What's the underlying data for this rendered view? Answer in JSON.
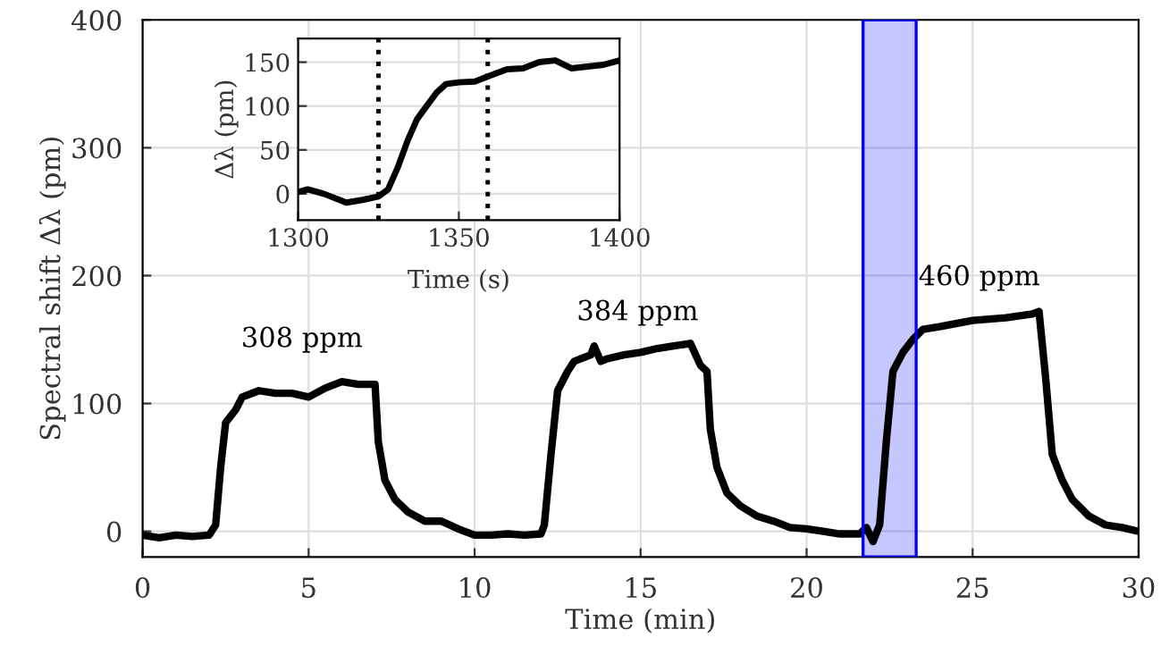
{
  "chart_data": [
    {
      "type": "line",
      "xlabel": "Time (min)",
      "ylabel": "Spectral shift Δλ (pm)",
      "x": [
        0,
        0.5,
        1,
        1.5,
        2,
        2.2,
        2.35,
        2.5,
        2.8,
        3,
        3.5,
        4,
        4.5,
        5,
        5.5,
        6,
        6.5,
        7,
        7.1,
        7.3,
        7.6,
        8,
        8.5,
        9,
        9.5,
        10,
        10.5,
        11,
        11.5,
        12,
        12.1,
        12.3,
        12.5,
        12.8,
        13,
        13.5,
        13.6,
        13.8,
        14,
        14.5,
        15,
        15.5,
        16,
        16.5,
        16.8,
        17,
        17.1,
        17.3,
        17.6,
        18,
        18.5,
        19,
        19.5,
        20,
        20.5,
        21,
        21.6,
        21.8,
        22,
        22.2,
        22.4,
        22.6,
        22.9,
        23.2,
        23.5,
        24,
        25,
        26,
        26.8,
        27,
        27.2,
        27.4,
        27.7,
        28,
        28.5,
        29,
        29.5,
        30
      ],
      "series": [
        {
          "color": "#000000",
          "values": [
            -3,
            -5,
            -3,
            -4,
            -3,
            5,
            50,
            85,
            95,
            105,
            110,
            108,
            108,
            105,
            112,
            117,
            115,
            115,
            70,
            40,
            25,
            15,
            8,
            8,
            2,
            -3,
            -3,
            -2,
            -3,
            -2,
            5,
            60,
            110,
            125,
            133,
            138,
            145,
            133,
            135,
            138,
            140,
            143,
            145,
            147,
            130,
            125,
            80,
            50,
            30,
            20,
            12,
            8,
            3,
            2,
            0,
            -2,
            -2,
            3,
            -8,
            5,
            70,
            125,
            140,
            150,
            158,
            160,
            165,
            167,
            170,
            172,
            120,
            60,
            40,
            25,
            12,
            5,
            3,
            0
          ]
        }
      ],
      "xlim": [
        0,
        30
      ],
      "xticks": [
        0,
        5,
        10,
        15,
        20,
        25,
        30
      ],
      "ylim": [
        -20,
        400
      ],
      "yticks": [
        0,
        100,
        200,
        300,
        400
      ],
      "grid": true,
      "bands": [
        {
          "axis": "x",
          "from": 21.7,
          "to": 23.3,
          "color": "#0000ff"
        }
      ],
      "annotations": [
        "308 ppm",
        "384 ppm",
        "460 ppm"
      ]
    },
    {
      "type": "line",
      "xlabel": "Time (s)",
      "ylabel": "Δλ (pm)",
      "x": [
        1300,
        1303,
        1308,
        1315,
        1320,
        1325,
        1328,
        1331,
        1334,
        1337,
        1340,
        1343,
        1346,
        1350,
        1355,
        1360,
        1365,
        1370,
        1375,
        1380,
        1385,
        1390,
        1395,
        1400
      ],
      "series": [
        {
          "color": "#000000",
          "values": [
            2,
            5,
            0,
            -10,
            -7,
            -3,
            5,
            30,
            60,
            85,
            100,
            115,
            125,
            127,
            128,
            135,
            142,
            143,
            150,
            152,
            143,
            145,
            147,
            152
          ]
        }
      ],
      "xlim": [
        1300,
        1400
      ],
      "xticks": [
        1300,
        1350,
        1400
      ],
      "ylim": [
        -30,
        177
      ],
      "yticks": [
        0,
        50,
        100,
        150
      ],
      "grid": true,
      "ref_lines": [
        {
          "axis": "x",
          "value": 1325,
          "line_style": "dotted"
        },
        {
          "axis": "x",
          "value": 1359,
          "line_style": "dotted"
        }
      ]
    }
  ]
}
